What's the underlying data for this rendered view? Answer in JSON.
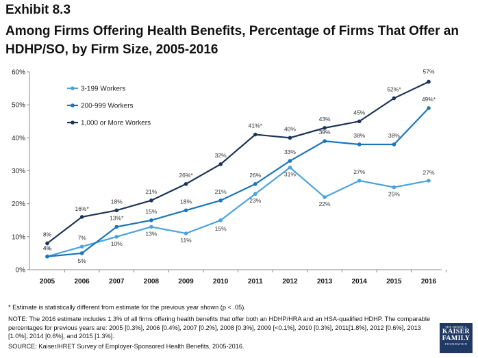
{
  "exhibit": "Exhibit 8.3",
  "title": "Among Firms Offering Health Benefits, Percentage of Firms That Offer an HDHP/SO, by Firm Size, 2005-2016",
  "chart_data": {
    "type": "line",
    "x": [
      "2005",
      "2006",
      "2007",
      "2008",
      "2009",
      "2010",
      "2011",
      "2012",
      "2013",
      "2014",
      "2015",
      "2016"
    ],
    "yticks": [
      "0%",
      "10%",
      "20%",
      "30%",
      "40%",
      "50%",
      "60%"
    ],
    "ylim": [
      0,
      60
    ],
    "legend_position": "top-left",
    "series": [
      {
        "name": "3-199 Workers",
        "color": "#4aa3df",
        "values": [
          4,
          7,
          10,
          13,
          11,
          15,
          23,
          31,
          22,
          27,
          25,
          27
        ],
        "labels": [
          "",
          "",
          "10%",
          "13%",
          "11%",
          "15%",
          "23%",
          "31%",
          "22%",
          "27%",
          "25%",
          "27%"
        ]
      },
      {
        "name": "200-999 Workers",
        "color": "#1a75bb",
        "values": [
          4,
          5,
          13,
          15,
          18,
          21,
          26,
          33,
          39,
          38,
          38,
          49
        ],
        "labels": [
          "4%",
          "5%",
          "13%*",
          "15%",
          "18%",
          "21%",
          "26%",
          "33%",
          "39%",
          "38%",
          "38%",
          "49%*"
        ]
      },
      {
        "name": "1,000 or More Workers",
        "color": "#1c3557",
        "values": [
          8,
          16,
          18,
          21,
          26,
          32,
          41,
          40,
          43,
          45,
          52,
          57
        ],
        "labels": [
          "8%",
          "16%*",
          "18%",
          "21%",
          "26%*",
          "32%",
          "41%*",
          "40%",
          "43%",
          "45%",
          "52%*",
          "57%"
        ]
      }
    ],
    "extra_labels": [
      "4%",
      "7%"
    ]
  },
  "footnotes": {
    "estimate": "* Estimate is statistically different from estimate for the previous year shown (p < .05).",
    "note": "NOTE:  The 2016 estimate includes 1.3% of all firms offering health benefits that offer both an HDHP/HRA and an HSA-qualified HDHP.  The comparable percentages for previous years are: 2005 [0.3%], 2006 [0.4%], 2007 [0.2%], 2008 [0.3%], 2009 [<0.1%], 2010 [0.3%], 2011[1.8%], 2012 [0.6%], 2013 [1.0%], 2014 [0.6%], and  2015 [1.3%].",
    "source": "SOURCE:  Kaiser/HRET Survey of Employer-Sponsored Health Benefits, 2005-2016."
  },
  "logo": {
    "line1": "THE HENRY J.",
    "line2a": "KAISER",
    "line2b": "FAMILY",
    "line3": "FOUNDATION"
  }
}
